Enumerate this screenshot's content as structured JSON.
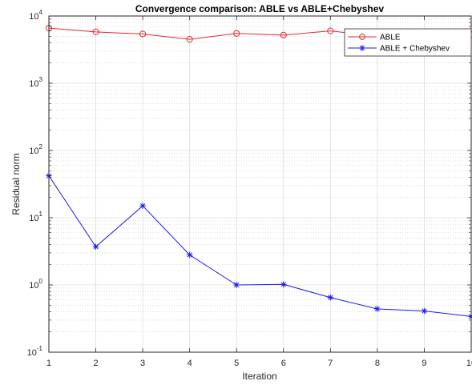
{
  "chart_data": {
    "type": "line",
    "title": "Convergence comparison: ABLE vs ABLE+Chebyshev",
    "xlabel": "Iteration",
    "ylabel": "Residual norm",
    "xlim": [
      1,
      10
    ],
    "ylim": [
      0.1,
      10000
    ],
    "yscale": "log",
    "grid": true,
    "legend_position": "top-right",
    "x": [
      1,
      2,
      3,
      4,
      5,
      6,
      7,
      8,
      9,
      10
    ],
    "x_tick_labels": [
      "1",
      "2",
      "3",
      "4",
      "5",
      "6",
      "7",
      "8",
      "9",
      "10"
    ],
    "y_tick_labels": [
      {
        "base": "10",
        "exp": "-1",
        "value": 0.1
      },
      {
        "base": "10",
        "exp": "0",
        "value": 1
      },
      {
        "base": "10",
        "exp": "1",
        "value": 10
      },
      {
        "base": "10",
        "exp": "2",
        "value": 100
      },
      {
        "base": "10",
        "exp": "3",
        "value": 1000
      },
      {
        "base": "10",
        "exp": "4",
        "value": 10000
      }
    ],
    "series": [
      {
        "name": "ABLE",
        "color": "#e8262a",
        "marker": "circle",
        "values": [
          6600,
          5800,
          5400,
          4500,
          5500,
          5200,
          6000,
          5000,
          5200,
          5300
        ]
      },
      {
        "name": "ABLE + Chebyshev",
        "color": "#1a1af0",
        "marker": "asterisk",
        "values": [
          42,
          3.7,
          15,
          2.8,
          1.0,
          1.02,
          0.65,
          0.44,
          0.41,
          0.34
        ]
      }
    ]
  }
}
